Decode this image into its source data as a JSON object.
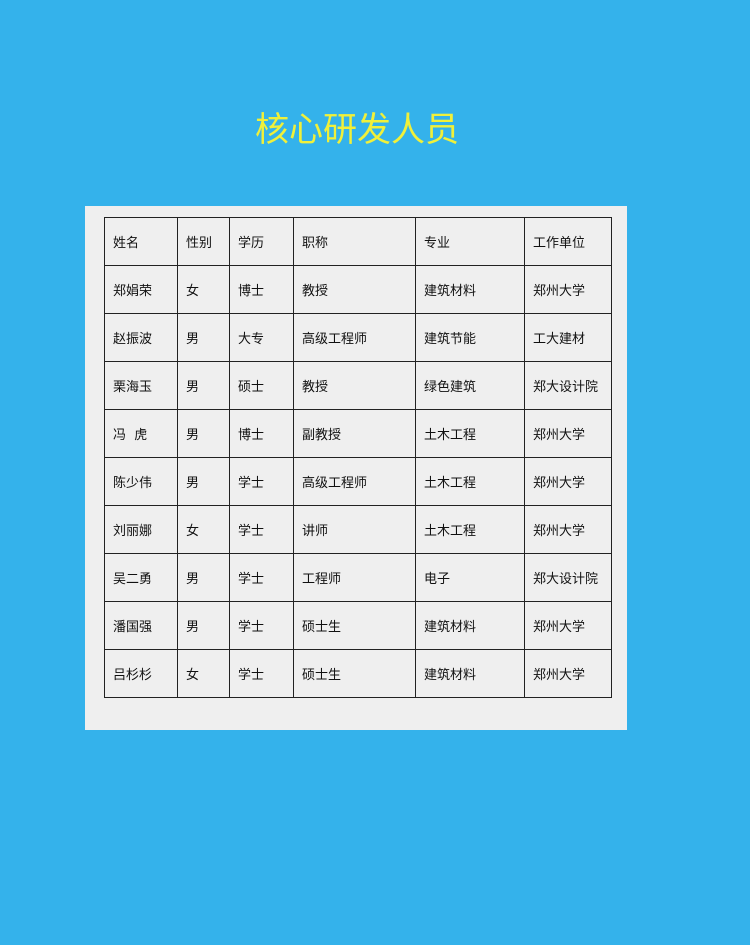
{
  "title": "核心研发人员",
  "colors": {
    "background": "#34b2eb",
    "title": "#f0f03a",
    "panel": "#efefef"
  },
  "table": {
    "headers": [
      "姓名",
      "性别",
      "学历",
      "职称",
      "专业",
      "工作单位"
    ],
    "rows": [
      [
        "郑娟荣",
        "女",
        "博士",
        "教授",
        "建筑材料",
        "郑州大学"
      ],
      [
        "赵振波",
        "男",
        "大专",
        "高级工程师",
        "建筑节能",
        "工大建材"
      ],
      [
        "栗海玉",
        "男",
        "硕士",
        "教授",
        "绿色建筑",
        "郑大设计院"
      ],
      [
        "冯  虎",
        "男",
        "博士",
        "副教授",
        "土木工程",
        "郑州大学"
      ],
      [
        "陈少伟",
        "男",
        "学士",
        "高级工程师",
        "土木工程",
        "郑州大学"
      ],
      [
        "刘丽娜",
        "女",
        "学士",
        "讲师",
        "土木工程",
        "郑州大学"
      ],
      [
        "吴二勇",
        "男",
        "学士",
        "工程师",
        "电子",
        "郑大设计院"
      ],
      [
        "潘国强",
        "男",
        "学士",
        "硕士生",
        "建筑材料",
        "郑州大学"
      ],
      [
        "吕杉杉",
        "女",
        "学士",
        "硕士生",
        "建筑材料",
        "郑州大学"
      ]
    ]
  }
}
